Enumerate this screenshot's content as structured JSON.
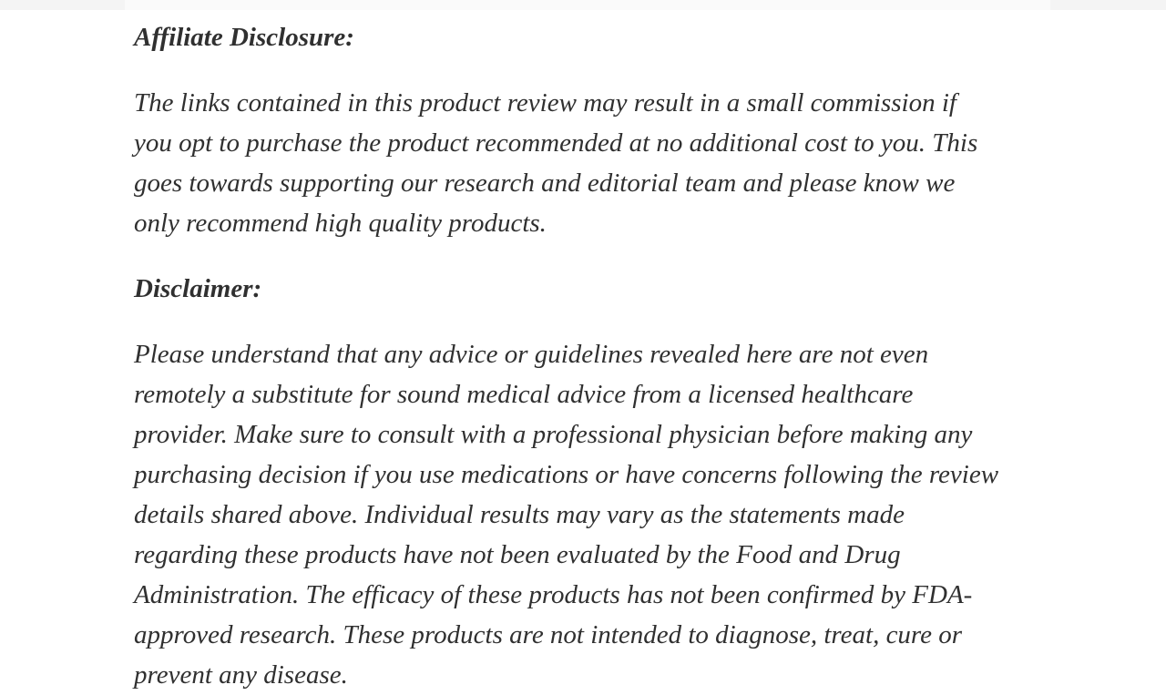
{
  "page": {
    "background_color": "#ffffff",
    "top_strip_color": "#fafafa",
    "text_color": "#303030"
  },
  "article": {
    "sections": [
      {
        "heading": "Affiliate Disclosure:",
        "lines": [
          "The links contained in this product review may result in a small commission if",
          "you opt to purchase the product recommended at no additional cost to you. This",
          "goes towards supporting our research and editorial team and please know we",
          "only recommend high quality products."
        ]
      },
      {
        "heading": "Disclaimer:",
        "lines": [
          "Please understand that any advice or guidelines revealed here are not even",
          "remotely a substitute for sound medical advice from a licensed healthcare",
          "provider. Make sure to consult with a professional physician before making any",
          "purchasing decision if you use medications or have concerns following the review",
          "details shared above. Individual results may vary as the statements made",
          "regarding these products have not been evaluated by the Food and Drug",
          "Administration. The efficacy of these products has not been confirmed by FDA-",
          "approved research. These products are not intended to diagnose, treat, cure or",
          "prevent any disease."
        ]
      }
    ]
  }
}
